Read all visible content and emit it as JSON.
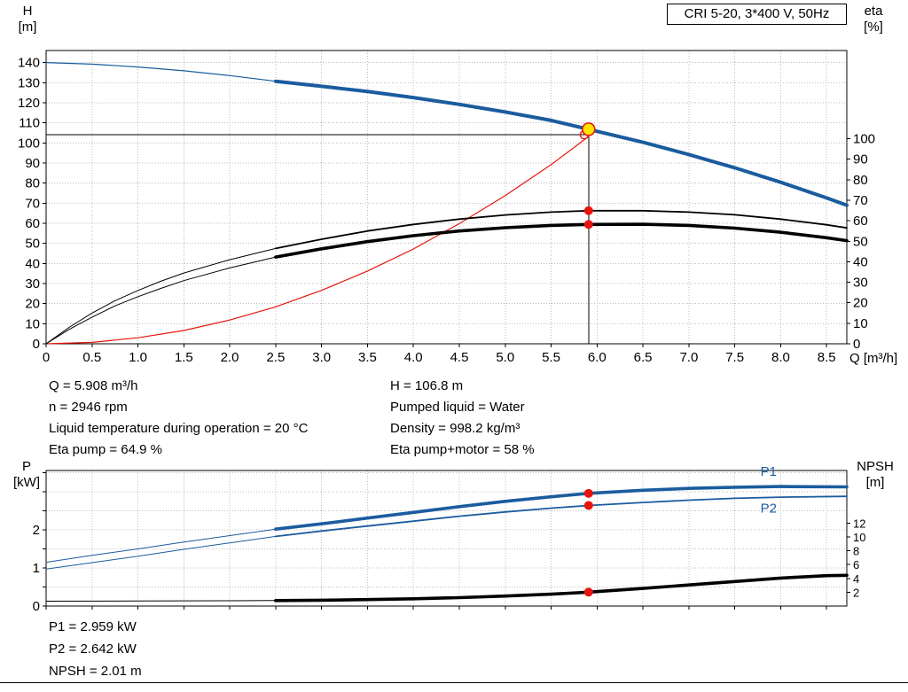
{
  "colors": {
    "blue": "#1a5c9e",
    "red": "#e8140c",
    "black": "#000000",
    "grid": "#bdbdbd",
    "duty_fill": "#ffe400"
  },
  "top_chart": {
    "y_left_label": "H",
    "y_left_unit": "[m]",
    "y_right_label": "eta",
    "y_right_unit": "[%]",
    "x_axis_label": "Q [m³/h]"
  },
  "bottom_chart": {
    "y_left_label": "P",
    "y_left_unit": "[kW]",
    "y_right_label": "NPSH",
    "y_right_unit": "[m]"
  },
  "results_top": {
    "col1": [
      "Q = 5.908 m³/h",
      "n = 2946 rpm",
      "Liquid temperature during operation = 20 °C",
      "Eta pump = 64.9 %"
    ],
    "col2": [
      "H = 106.8 m",
      "Pumped liquid = Water",
      "Density = 998.2 kg/m³",
      "Eta pump+motor = 58 %"
    ]
  },
  "results_bottom": [
    "P1 = 2.959 kW",
    "P2 = 2.642 kW",
    "NPSH = 2.01 m"
  ],
  "chart_data": [
    {
      "type": "line",
      "name": "qh-eta-chart",
      "title": "CRI 5-20, 3*400 V, 50Hz",
      "x": {
        "min": 0,
        "max": 8.72,
        "label": "Q [m³/h]",
        "ticks": [
          {
            "v": 0,
            "t": "0"
          },
          {
            "v": 0.5,
            "t": "0.5"
          },
          {
            "v": 1,
            "t": "1.0"
          },
          {
            "v": 1.5,
            "t": "1.5"
          },
          {
            "v": 2,
            "t": "2.0"
          },
          {
            "v": 2.5,
            "t": "2.5"
          },
          {
            "v": 3,
            "t": "3.0"
          },
          {
            "v": 3.5,
            "t": "3.5"
          },
          {
            "v": 4,
            "t": "4.0"
          },
          {
            "v": 4.5,
            "t": "4.5"
          },
          {
            "v": 5,
            "t": "5.0"
          },
          {
            "v": 5.5,
            "t": "5.5"
          },
          {
            "v": 6,
            "t": "6.0"
          },
          {
            "v": 6.5,
            "t": "6.5"
          },
          {
            "v": 7,
            "t": "7.0"
          },
          {
            "v": 7.5,
            "t": "7.5"
          },
          {
            "v": 8,
            "t": "8.0"
          },
          {
            "v": 8.5,
            "t": "8.5"
          }
        ]
      },
      "y_left": {
        "min": 0,
        "max": 146,
        "label": "H [m]",
        "ticks": [
          {
            "v": 0,
            "t": "0"
          },
          {
            "v": 10,
            "t": "10"
          },
          {
            "v": 20,
            "t": "20"
          },
          {
            "v": 30,
            "t": "30"
          },
          {
            "v": 40,
            "t": "40"
          },
          {
            "v": 50,
            "t": "50"
          },
          {
            "v": 60,
            "t": "60"
          },
          {
            "v": 70,
            "t": "70"
          },
          {
            "v": 80,
            "t": "80"
          },
          {
            "v": 90,
            "t": "90"
          },
          {
            "v": 100,
            "t": "100"
          },
          {
            "v": 110,
            "t": "110"
          },
          {
            "v": 120,
            "t": "120"
          },
          {
            "v": 130,
            "t": "130"
          },
          {
            "v": 140,
            "t": "140"
          }
        ]
      },
      "y_right": {
        "min": 0,
        "max": 143,
        "label": "eta [%]",
        "ticks": [
          {
            "v": 0,
            "t": "0"
          },
          {
            "v": 10,
            "t": "10"
          },
          {
            "v": 20,
            "t": "20"
          },
          {
            "v": 30,
            "t": "30"
          },
          {
            "v": 40,
            "t": "40"
          },
          {
            "v": 50,
            "t": "50"
          },
          {
            "v": 60,
            "t": "60"
          },
          {
            "v": 70,
            "t": "70"
          },
          {
            "v": 80,
            "t": "80"
          },
          {
            "v": 90,
            "t": "90"
          },
          {
            "v": 100,
            "t": "100"
          }
        ]
      },
      "series": [
        {
          "name": "qh-curve-lead",
          "axis": "left",
          "color": "blue",
          "w": 1.2,
          "pts": [
            [
              0,
              140
            ],
            [
              0.5,
              139.2
            ],
            [
              1,
              137.8
            ],
            [
              1.5,
              135.9
            ],
            [
              2,
              133.5
            ],
            [
              2.5,
              130.7
            ]
          ]
        },
        {
          "name": "system-curve",
          "axis": "left",
          "color": "red",
          "w": 1.2,
          "pts": [
            [
              0,
              0
            ],
            [
              0.5,
              0.7
            ],
            [
              1,
              3
            ],
            [
              1.5,
              6.6
            ],
            [
              2,
              11.8
            ],
            [
              2.5,
              18.4
            ],
            [
              3,
              26.6
            ],
            [
              3.5,
              36.2
            ],
            [
              4,
              47.2
            ],
            [
              4.5,
              59.8
            ],
            [
              5,
              73.8
            ],
            [
              5.5,
              89.2
            ],
            [
              5.908,
              103.2
            ]
          ]
        },
        {
          "name": "eta-pump-curve-lead",
          "axis": "right",
          "color": "black",
          "w": 1,
          "pts": [
            [
              0,
              0
            ],
            [
              0.25,
              8
            ],
            [
              0.5,
              15
            ],
            [
              0.75,
              21
            ],
            [
              1,
              26
            ],
            [
              1.25,
              30.5
            ],
            [
              1.5,
              34.5
            ],
            [
              2,
              41
            ],
            [
              2.5,
              46.5
            ]
          ]
        },
        {
          "name": "eta-pump-curve",
          "axis": "right",
          "color": "black",
          "w": 1.8,
          "pts": [
            [
              2.5,
              46.5
            ],
            [
              3,
              51
            ],
            [
              3.5,
              55
            ],
            [
              4,
              58.2
            ],
            [
              4.5,
              60.8
            ],
            [
              5,
              62.8
            ],
            [
              5.5,
              64.2
            ],
            [
              5.908,
              64.9
            ],
            [
              6.5,
              64.9
            ],
            [
              7,
              64.2
            ],
            [
              7.5,
              62.9
            ],
            [
              8,
              60.8
            ],
            [
              8.5,
              58
            ],
            [
              8.72,
              56.5
            ]
          ]
        },
        {
          "name": "eta-pump-motor-curve-lead",
          "axis": "right",
          "color": "black",
          "w": 1,
          "pts": [
            [
              0,
              0
            ],
            [
              0.25,
              7
            ],
            [
              0.5,
              13
            ],
            [
              0.75,
              18.5
            ],
            [
              1,
              23
            ],
            [
              1.25,
              27
            ],
            [
              1.5,
              30.8
            ],
            [
              2,
              37
            ],
            [
              2.5,
              42.3
            ]
          ]
        },
        {
          "name": "eta-pump-motor-curve",
          "axis": "right",
          "color": "black",
          "w": 3.6,
          "pts": [
            [
              2.5,
              42.3
            ],
            [
              3,
              46.3
            ],
            [
              3.5,
              49.8
            ],
            [
              4,
              52.7
            ],
            [
              4.5,
              55
            ],
            [
              5,
              56.6
            ],
            [
              5.5,
              57.7
            ],
            [
              5.908,
              58.2
            ],
            [
              6.5,
              58.3
            ],
            [
              7,
              57.7
            ],
            [
              7.5,
              56.4
            ],
            [
              8,
              54.4
            ],
            [
              8.5,
              51.7
            ],
            [
              8.72,
              50.3
            ]
          ]
        },
        {
          "name": "qh-curve",
          "axis": "left",
          "color": "blue",
          "w": 4,
          "pts": [
            [
              2.5,
              130.7
            ],
            [
              3,
              128.2
            ],
            [
              3.5,
              125.6
            ],
            [
              4,
              122.6
            ],
            [
              4.5,
              119.2
            ],
            [
              5,
              115.4
            ],
            [
              5.5,
              111.2
            ],
            [
              5.908,
              106.8
            ],
            [
              6.5,
              100.3
            ],
            [
              7,
              94.2
            ],
            [
              7.5,
              87.6
            ],
            [
              8,
              80.4
            ],
            [
              8.5,
              72.6
            ],
            [
              8.72,
              69
            ]
          ]
        }
      ],
      "crosshair": {
        "x": 5.908,
        "y_top": 106.8,
        "y_h": 104
      },
      "markers": [
        {
          "x": 5.86,
          "y": 104,
          "axis": "left",
          "kind": "open"
        },
        {
          "x": 5.908,
          "y": 64.9,
          "axis": "right",
          "kind": "dot"
        },
        {
          "x": 5.908,
          "y": 58.2,
          "axis": "right",
          "kind": "dot"
        },
        {
          "x": 5.908,
          "y": 106.8,
          "axis": "left",
          "kind": "duty"
        }
      ],
      "labels": []
    },
    {
      "type": "line",
      "name": "power-npsh-chart",
      "x": {
        "min": 0,
        "max": 8.72,
        "label": "",
        "ticks": [
          0,
          0.5,
          1,
          1.5,
          2,
          2.5,
          3,
          3.5,
          4,
          4.5,
          5,
          5.5,
          6,
          6.5,
          7,
          7.5,
          8,
          8.5
        ]
      },
      "y_left": {
        "min": 0,
        "max": 3.56,
        "label": "P [kW]",
        "ticks": [
          {
            "v": 0,
            "t": "0"
          },
          0.5,
          {
            "v": 1,
            "t": "1"
          },
          1.5,
          {
            "v": 2,
            "t": "2"
          },
          2.5,
          3,
          3.5
        ]
      },
      "y_right": {
        "min": 0,
        "max": 19.6,
        "label": "NPSH [m]",
        "small": true,
        "ticks": [
          {
            "v": 2,
            "t": "2"
          },
          {
            "v": 4,
            "t": "4"
          },
          {
            "v": 6,
            "t": "6"
          },
          {
            "v": 8,
            "t": "8"
          },
          {
            "v": 10,
            "t": "10"
          },
          {
            "v": 12,
            "t": "12"
          }
        ]
      },
      "series": [
        {
          "name": "p1-curve-lead",
          "axis": "left",
          "color": "blue",
          "w": 1,
          "pts": [
            [
              0,
              1.15
            ],
            [
              0.5,
              1.33
            ],
            [
              1,
              1.5
            ],
            [
              1.5,
              1.68
            ],
            [
              2,
              1.85
            ],
            [
              2.5,
              2.02
            ]
          ]
        },
        {
          "name": "p2-curve-lead",
          "axis": "left",
          "color": "blue",
          "w": 1,
          "pts": [
            [
              0,
              0.97
            ],
            [
              0.5,
              1.14
            ],
            [
              1,
              1.31
            ],
            [
              1.5,
              1.49
            ],
            [
              2,
              1.66
            ],
            [
              2.5,
              1.83
            ]
          ]
        },
        {
          "name": "p2-curve",
          "axis": "left",
          "color": "blue",
          "w": 1.8,
          "pts": [
            [
              2.5,
              1.83
            ],
            [
              3,
              1.97
            ],
            [
              3.5,
              2.1
            ],
            [
              4,
              2.23
            ],
            [
              4.5,
              2.36
            ],
            [
              5,
              2.47
            ],
            [
              5.5,
              2.57
            ],
            [
              5.908,
              2.642
            ],
            [
              6.5,
              2.72
            ],
            [
              7,
              2.78
            ],
            [
              7.5,
              2.83
            ],
            [
              8,
              2.86
            ],
            [
              8.72,
              2.88
            ]
          ]
        },
        {
          "name": "p1-curve",
          "axis": "left",
          "color": "blue",
          "w": 3.6,
          "pts": [
            [
              2.5,
              2.02
            ],
            [
              3,
              2.16
            ],
            [
              3.5,
              2.31
            ],
            [
              4,
              2.46
            ],
            [
              4.5,
              2.61
            ],
            [
              5,
              2.75
            ],
            [
              5.5,
              2.87
            ],
            [
              5.908,
              2.959
            ],
            [
              6.5,
              3.04
            ],
            [
              7,
              3.09
            ],
            [
              7.5,
              3.12
            ],
            [
              8,
              3.14
            ],
            [
              8.72,
              3.13
            ]
          ]
        },
        {
          "name": "npsh-curve-lead",
          "axis": "right",
          "color": "black",
          "w": 1,
          "pts": [
            [
              0,
              0.7
            ],
            [
              1,
              0.73
            ],
            [
              2,
              0.77
            ],
            [
              2.5,
              0.8
            ]
          ]
        },
        {
          "name": "npsh-curve",
          "axis": "right",
          "color": "black",
          "w": 3.6,
          "pts": [
            [
              2.5,
              0.8
            ],
            [
              3,
              0.85
            ],
            [
              3.5,
              0.93
            ],
            [
              4,
              1.05
            ],
            [
              4.5,
              1.22
            ],
            [
              5,
              1.45
            ],
            [
              5.5,
              1.72
            ],
            [
              5.908,
              2.01
            ],
            [
              6.5,
              2.55
            ],
            [
              7,
              3.05
            ],
            [
              7.5,
              3.55
            ],
            [
              8,
              4.05
            ],
            [
              8.5,
              4.4
            ],
            [
              8.72,
              4.45
            ]
          ]
        }
      ],
      "markers": [
        {
          "x": 5.908,
          "y": 2.959,
          "axis": "left",
          "kind": "dot"
        },
        {
          "x": 5.908,
          "y": 2.642,
          "axis": "left",
          "kind": "dot"
        },
        {
          "x": 5.908,
          "y": 2.01,
          "axis": "right",
          "kind": "dot"
        }
      ],
      "labels": [
        {
          "t": "P1",
          "x": 7.78,
          "y": 3.42,
          "color": "blue"
        },
        {
          "t": "P2",
          "x": 7.78,
          "y": 2.46,
          "color": "blue"
        }
      ]
    }
  ]
}
